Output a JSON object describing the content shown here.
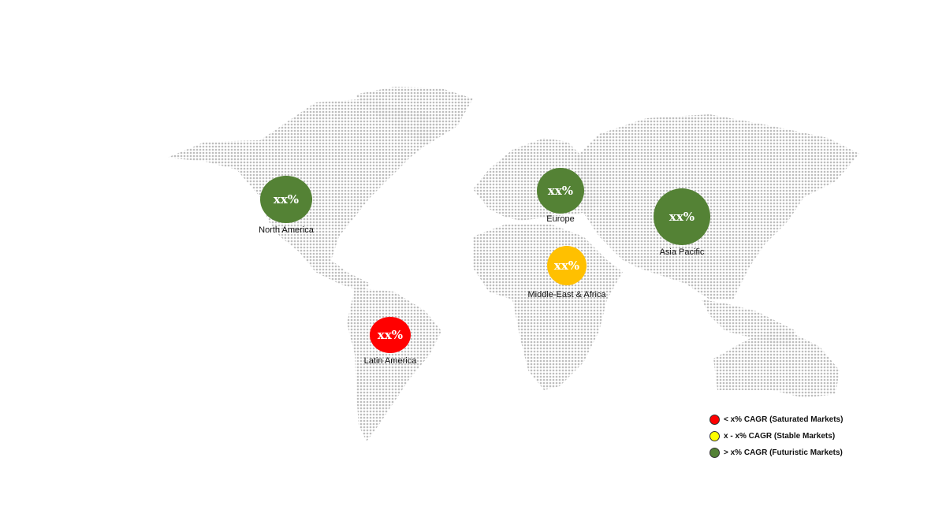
{
  "regions": [
    {
      "name": "North America",
      "value": "xx%",
      "status": "futuristic"
    },
    {
      "name": "Europe",
      "value": "xx%",
      "status": "futuristic"
    },
    {
      "name": "Asia Pacific",
      "value": "xx%",
      "status": "futuristic"
    },
    {
      "name": "Middle-East & Africa",
      "value": "xx%",
      "status": "stable"
    },
    {
      "name": "Latin America",
      "value": "xx%",
      "status": "saturated"
    }
  ],
  "legend": [
    {
      "key": "saturated",
      "label": "< x% CAGR (Saturated Markets)",
      "color": "#FF0000"
    },
    {
      "key": "stable",
      "label": "x - x% CAGR (Stable Markets)",
      "color": "#FFFF00"
    },
    {
      "key": "futuristic",
      "label": "> x% CAGR (Futuristic Markets)",
      "color": "#538135"
    }
  ],
  "bubble_colors": {
    "futuristic": "#548235",
    "stable": "#FFC000",
    "saturated": "#FF0000"
  },
  "map_color": "#bdbdbd"
}
